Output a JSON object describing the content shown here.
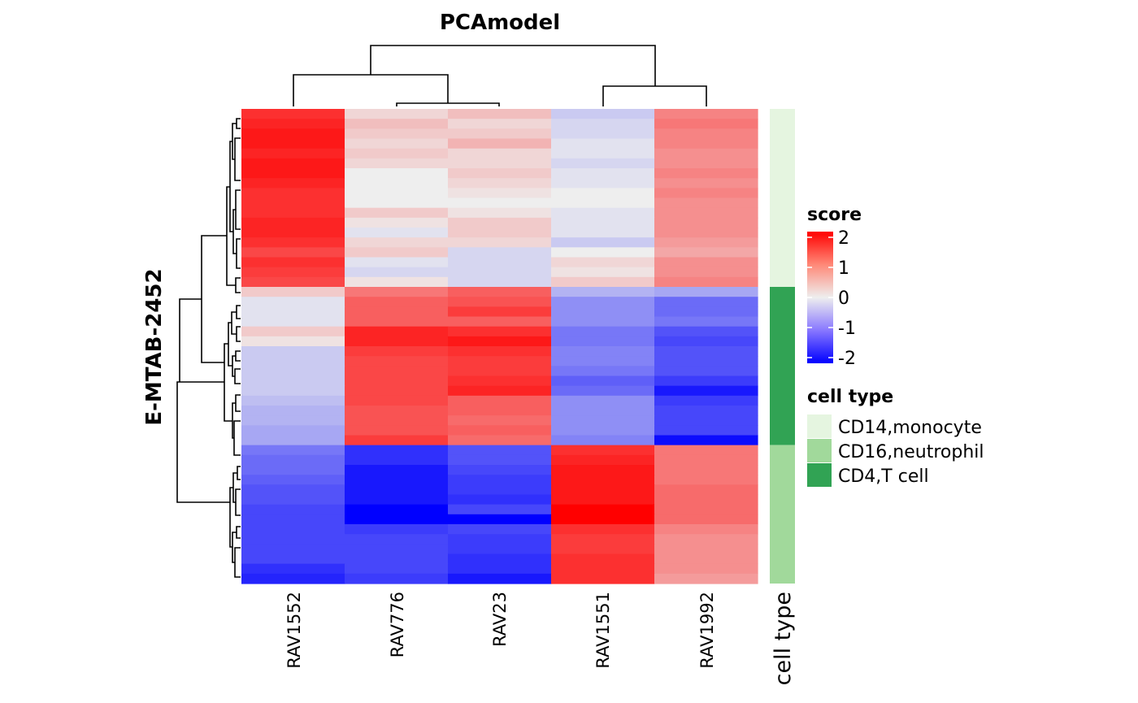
{
  "chart_data": {
    "type": "heatmap",
    "title": "PCAmodel",
    "ylabel": "E-MTAB-2452",
    "columns": [
      "RAV1552",
      "RAV776",
      "RAV23",
      "RAV1551",
      "RAV1992"
    ],
    "annotation_label": "cell type",
    "row_groups": [
      {
        "cell_type": "CD14,monocyte",
        "rows": [
          [
            1.6,
            0.2,
            0.4,
            -0.3,
            0.9
          ],
          [
            1.7,
            0.4,
            0.2,
            -0.2,
            1.0
          ],
          [
            1.8,
            0.3,
            0.3,
            -0.2,
            0.9
          ],
          [
            1.8,
            0.2,
            0.5,
            -0.1,
            0.9
          ],
          [
            1.7,
            0.3,
            0.2,
            -0.1,
            0.8
          ],
          [
            1.8,
            0.2,
            0.2,
            -0.2,
            0.8
          ],
          [
            1.8,
            0.0,
            0.3,
            -0.1,
            0.9
          ],
          [
            1.7,
            0.0,
            0.2,
            -0.1,
            0.8
          ],
          [
            1.6,
            0.0,
            0.1,
            0.0,
            0.9
          ],
          [
            1.6,
            0.0,
            0.0,
            0.0,
            0.8
          ],
          [
            1.6,
            0.3,
            0.1,
            -0.1,
            0.8
          ],
          [
            1.7,
            0.1,
            0.3,
            -0.1,
            0.8
          ],
          [
            1.7,
            -0.1,
            0.3,
            -0.1,
            0.8
          ],
          [
            1.6,
            0.2,
            0.2,
            -0.3,
            0.7
          ],
          [
            1.4,
            0.3,
            -0.2,
            0.0,
            0.6
          ],
          [
            1.6,
            -0.1,
            -0.2,
            0.2,
            0.8
          ],
          [
            1.5,
            -0.2,
            -0.2,
            0.1,
            0.8
          ],
          [
            1.4,
            0.1,
            -0.2,
            0.3,
            0.9
          ]
        ]
      },
      {
        "cell_type": "CD4,T cell",
        "rows": [
          [
            0.3,
            1.0,
            1.2,
            -0.5,
            -0.6
          ],
          [
            -0.1,
            1.2,
            1.3,
            -0.8,
            -1.1
          ],
          [
            -0.1,
            1.2,
            1.5,
            -0.8,
            -1.1
          ],
          [
            -0.1,
            1.2,
            1.2,
            -0.8,
            -1.0
          ],
          [
            0.3,
            1.7,
            1.6,
            -1.0,
            -1.3
          ],
          [
            0.1,
            1.7,
            1.8,
            -1.0,
            -1.4
          ],
          [
            -0.3,
            1.5,
            1.6,
            -0.9,
            -1.3
          ],
          [
            -0.3,
            1.4,
            1.5,
            -0.9,
            -1.3
          ],
          [
            -0.3,
            1.4,
            1.5,
            -1.0,
            -1.3
          ],
          [
            -0.3,
            1.4,
            1.6,
            -1.2,
            -1.5
          ],
          [
            -0.3,
            1.4,
            1.7,
            -1.1,
            -1.8
          ],
          [
            -0.4,
            1.4,
            1.2,
            -0.8,
            -1.5
          ],
          [
            -0.5,
            1.3,
            1.2,
            -0.8,
            -1.4
          ],
          [
            -0.5,
            1.3,
            1.1,
            -0.8,
            -1.4
          ],
          [
            -0.6,
            1.3,
            1.2,
            -0.8,
            -1.4
          ],
          [
            -0.6,
            1.5,
            1.1,
            -0.9,
            -1.9
          ]
        ]
      },
      {
        "cell_type": "CD16,neutrophil",
        "rows": [
          [
            -1.0,
            -1.6,
            -1.3,
            1.6,
            1.0
          ],
          [
            -1.1,
            -1.6,
            -1.3,
            1.7,
            1.0
          ],
          [
            -1.1,
            -1.8,
            -1.4,
            1.8,
            1.0
          ],
          [
            -1.2,
            -1.8,
            -1.5,
            1.8,
            1.0
          ],
          [
            -1.3,
            -1.8,
            -1.5,
            1.8,
            1.1
          ],
          [
            -1.3,
            -1.8,
            -1.6,
            1.8,
            1.1
          ],
          [
            -1.4,
            -2.0,
            -1.4,
            2.0,
            1.1
          ],
          [
            -1.4,
            -2.0,
            -2.0,
            2.0,
            1.1
          ],
          [
            -1.4,
            -1.5,
            -1.4,
            1.6,
            0.9
          ],
          [
            -1.4,
            -1.4,
            -1.5,
            1.5,
            0.8
          ],
          [
            -1.4,
            -1.4,
            -1.5,
            1.5,
            0.8
          ],
          [
            -1.4,
            -1.4,
            -1.6,
            1.6,
            0.8
          ],
          [
            -1.6,
            -1.4,
            -1.6,
            1.6,
            0.8
          ],
          [
            -1.7,
            -1.5,
            -1.8,
            1.6,
            0.7
          ]
        ]
      }
    ],
    "colorscale": {
      "min": -2,
      "mid": 0,
      "max": 2,
      "low": "#0000ff",
      "mid_color": "#eeeeee",
      "high": "#ff0000"
    },
    "legend": {
      "score_title": "score",
      "score_ticks": [
        "2",
        "1",
        "0",
        "-1",
        "-2"
      ],
      "celltype_title": "cell type",
      "celltype_items": [
        {
          "label": "CD14,monocyte",
          "color": "#e5f5e0"
        },
        {
          "label": "CD16,neutrophil",
          "color": "#a1d99b"
        },
        {
          "label": "CD4,T cell",
          "color": "#31a354"
        }
      ]
    }
  }
}
